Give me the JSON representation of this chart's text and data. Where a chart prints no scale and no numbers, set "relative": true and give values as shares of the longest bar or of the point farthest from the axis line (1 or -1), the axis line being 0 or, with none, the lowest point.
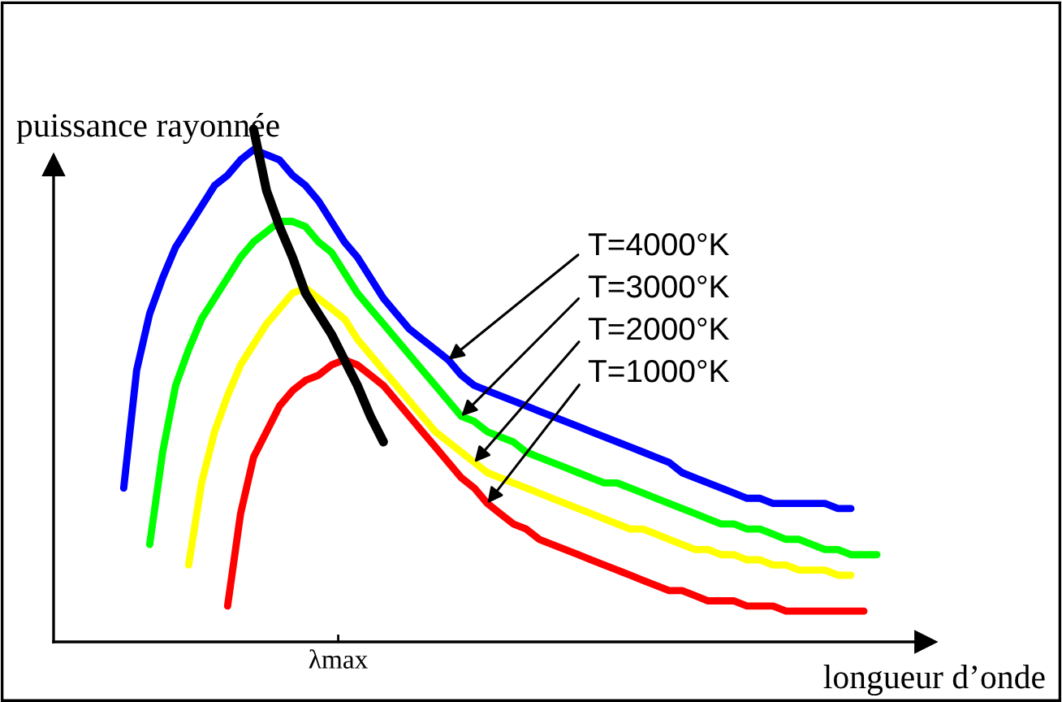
{
  "chart_data": {
    "type": "line",
    "relative": true,
    "ylabel": "puissance rayonnée",
    "xlabel": "longueur d’onde",
    "marker": "none",
    "line_style": "solid",
    "categories": [
      null,
      null,
      null,
      null,
      null,
      null,
      null,
      null,
      null,
      null,
      null,
      null,
      null,
      null,
      null,
      null,
      null,
      null,
      null,
      null,
      null,
      null,
      null,
      null,
      null,
      null,
      null,
      null,
      null,
      null,
      null,
      null,
      null,
      null,
      null,
      null,
      null,
      null,
      null,
      null,
      null,
      null,
      null,
      null,
      null,
      null,
      null,
      null,
      null,
      null,
      null,
      null,
      null,
      null,
      null,
      null,
      null,
      null,
      null
    ],
    "series": [
      {
        "color": "#0000ff",
        "values": [
          0.3,
          0.53,
          0.64,
          0.71,
          0.77,
          0.81,
          0.85,
          0.89,
          0.91,
          0.94,
          0.96,
          0.95,
          0.94,
          0.91,
          0.89,
          0.86,
          0.82,
          0.78,
          0.75,
          0.71,
          0.67,
          0.64,
          0.61,
          0.59,
          0.57,
          0.55,
          0.52,
          0.5,
          0.49,
          0.48,
          0.47,
          0.46,
          0.45,
          0.44,
          0.43,
          0.42,
          0.41,
          0.4,
          0.39,
          0.38,
          0.37,
          0.36,
          0.35,
          0.33,
          0.32,
          0.31,
          0.3,
          0.29,
          0.28,
          0.28,
          0.27,
          0.27,
          0.27,
          0.27,
          0.27,
          0.26,
          0.26,
          null,
          null
        ]
      },
      {
        "color": "#00ff00",
        "values": [
          null,
          null,
          0.19,
          0.37,
          0.5,
          0.57,
          0.63,
          0.67,
          0.71,
          0.75,
          0.78,
          0.8,
          0.82,
          0.82,
          0.81,
          0.78,
          0.76,
          0.72,
          0.68,
          0.65,
          0.62,
          0.59,
          0.56,
          0.53,
          0.5,
          0.47,
          0.44,
          0.43,
          0.41,
          0.4,
          0.39,
          0.37,
          0.36,
          0.35,
          0.34,
          0.33,
          0.32,
          0.31,
          0.31,
          0.3,
          0.29,
          0.28,
          0.27,
          0.26,
          0.25,
          0.24,
          0.23,
          0.23,
          0.22,
          0.22,
          0.21,
          0.2,
          0.2,
          0.19,
          0.18,
          0.18,
          0.17,
          0.17,
          0.17
        ]
      },
      {
        "color": "#ffff00",
        "values": [
          null,
          null,
          null,
          null,
          null,
          0.15,
          0.31,
          0.41,
          0.48,
          0.54,
          0.58,
          0.62,
          0.65,
          0.68,
          0.69,
          0.67,
          0.65,
          0.63,
          0.59,
          0.56,
          0.53,
          0.5,
          0.47,
          0.44,
          0.41,
          0.39,
          0.37,
          0.35,
          0.33,
          0.32,
          0.31,
          0.3,
          0.29,
          0.28,
          0.27,
          0.26,
          0.25,
          0.24,
          0.23,
          0.22,
          0.22,
          0.21,
          0.2,
          0.19,
          0.18,
          0.18,
          0.17,
          0.17,
          0.16,
          0.16,
          0.15,
          0.15,
          0.14,
          0.14,
          0.14,
          0.13,
          0.13,
          null,
          null
        ]
      },
      {
        "color": "#ff0000",
        "values": [
          null,
          null,
          null,
          null,
          null,
          null,
          null,
          null,
          0.07,
          0.25,
          0.36,
          0.41,
          0.46,
          0.49,
          0.51,
          0.52,
          0.54,
          0.55,
          0.54,
          0.52,
          0.5,
          0.47,
          0.44,
          0.41,
          0.38,
          0.35,
          0.32,
          0.3,
          0.27,
          0.25,
          0.23,
          0.22,
          0.2,
          0.19,
          0.18,
          0.17,
          0.16,
          0.15,
          0.14,
          0.13,
          0.12,
          0.11,
          0.1,
          0.1,
          0.09,
          0.08,
          0.08,
          0.08,
          0.07,
          0.07,
          0.07,
          0.06,
          0.06,
          0.06,
          0.06,
          0.06,
          0.06,
          0.06,
          null
        ]
      },
      {
        "color": "#000000",
        "values": [
          null,
          null,
          null,
          null,
          null,
          null,
          null,
          null,
          null,
          null,
          1.0,
          0.88,
          0.81,
          0.75,
          0.68,
          0.64,
          0.6,
          0.55,
          0.5,
          0.44,
          0.39,
          null,
          null,
          null,
          null,
          null,
          null,
          null,
          null,
          null,
          null,
          null,
          null,
          null,
          null,
          null,
          null,
          null,
          null,
          null,
          null,
          null,
          null,
          null,
          null,
          null,
          null,
          null,
          null,
          null,
          null,
          null,
          null,
          null,
          null,
          null,
          null,
          null,
          null
        ]
      }
    ],
    "annotations": [
      "λmax",
      "T=4000°K",
      "T=3000°K",
      "T=2000°K",
      "T=1000°K"
    ]
  }
}
